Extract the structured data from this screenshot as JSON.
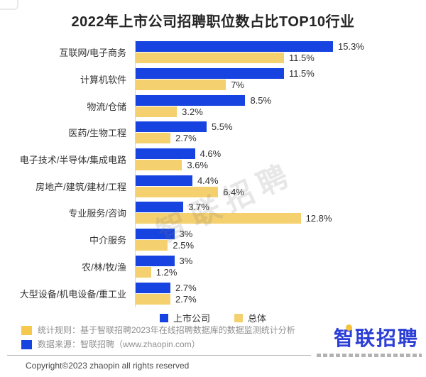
{
  "title": "2022年上市公司招聘职位数占比TOP10行业",
  "chart_data": {
    "type": "bar",
    "orientation": "horizontal",
    "title": "2022年上市公司招聘职位数占比TOP10行业",
    "xlabel": "",
    "ylabel": "",
    "xlim": [
      0,
      16.5
    ],
    "grid": false,
    "legend_position": "bottom",
    "categories": [
      "互联网/电子商务",
      "计算机软件",
      "物流/仓储",
      "医药/生物工程",
      "电子技术/半导体/集成电路",
      "房地产/建筑/建材/工程",
      "专业服务/咨询",
      "中介服务",
      "农/林/牧/渔",
      "大型设备/机电设备/重工业"
    ],
    "series": [
      {
        "name": "上市公司",
        "color": "#1743e0",
        "values": [
          15.3,
          11.5,
          8.5,
          5.5,
          4.6,
          4.4,
          3.7,
          3,
          3,
          2.7
        ],
        "labels": [
          "15.3%",
          "11.5%",
          "8.5%",
          "5.5%",
          "4.6%",
          "4.4%",
          "3.7%",
          "3%",
          "3%",
          "2.7%"
        ]
      },
      {
        "name": "总体",
        "color": "#f5d06e",
        "values": [
          11.5,
          7,
          3.2,
          2.7,
          3.6,
          6.4,
          12.8,
          2.5,
          1.2,
          2.7
        ],
        "labels": [
          "11.5%",
          "7%",
          "3.2%",
          "2.7%",
          "3.6%",
          "6.4%",
          "12.8%",
          "2.5%",
          "1.2%",
          "2.7%"
        ]
      }
    ]
  },
  "legend": {
    "items": [
      {
        "label": "上市公司",
        "color": "#1743e0"
      },
      {
        "label": "总体",
        "color": "#f5d06e"
      }
    ]
  },
  "watermark": "智联招聘",
  "footnotes": [
    {
      "bullet_color": "#f5c94e",
      "text": "统计规则：基于智联招聘2023年在线招聘数据库的数据监测统计分析"
    },
    {
      "bullet_color": "#1743e0",
      "text": "数据来源：智联招聘（www.zhaopin.com）"
    }
  ],
  "logo": {
    "text": "智联招聘"
  },
  "copyright": "Copyright©2023 zhaopin all rights reserved",
  "colors": {
    "bar_blue": "#1743e0",
    "bar_yellow": "#f5d06e",
    "axis_line": "#d6d6d6",
    "footnote_text": "#8f8f8f",
    "logo_blue": "#2b3ed6",
    "logo_dot_yellow": "#f5c23c"
  }
}
